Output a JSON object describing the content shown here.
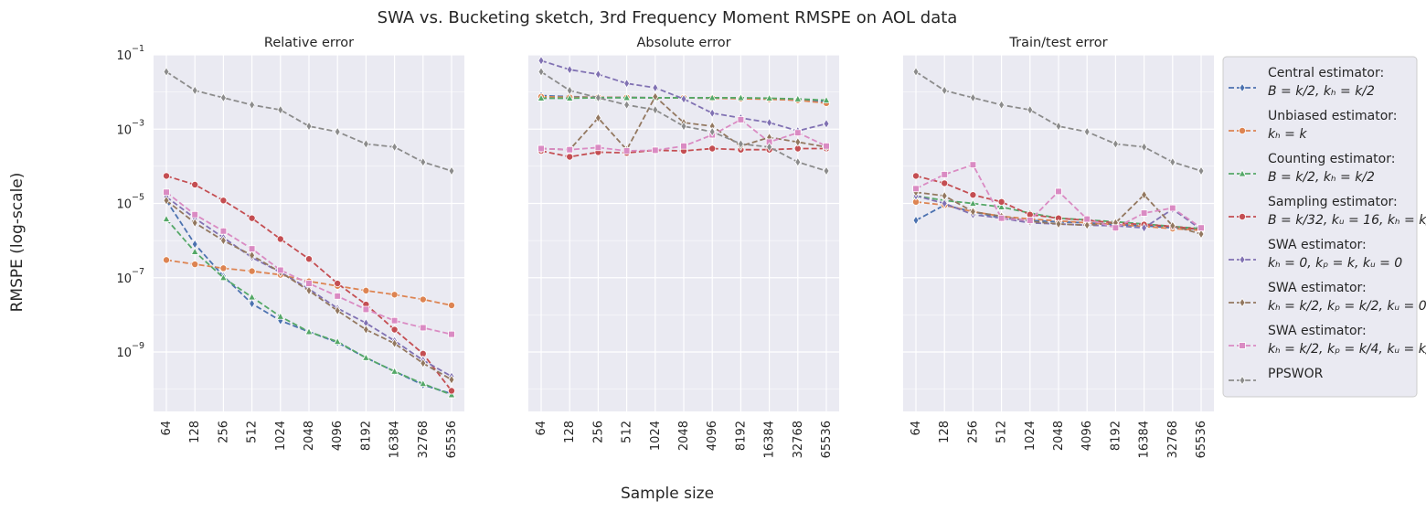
{
  "figure": {
    "title": "SWA vs. Bucketing sketch, 3rd Frequency Moment RMSPE on AOL data",
    "ylabel": "RMSPE (log-scale)",
    "xlabel": "Sample size"
  },
  "legend": {
    "placement": "right",
    "entries": [
      {
        "line1": "Central estimator:",
        "line2": "B = k/2, kₕ = k/2"
      },
      {
        "line1": "Unbiased estimator:",
        "line2": "kₕ = k"
      },
      {
        "line1": "Counting estimator:",
        "line2": "B = k/2, kₕ = k/2"
      },
      {
        "line1": "Sampling estimator:",
        "line2": "B = k/32, kᵤ = 16, kₕ = k/2"
      },
      {
        "line1": "SWA estimator:",
        "line2": "kₕ = 0, kₚ = k, kᵤ = 0"
      },
      {
        "line1": "SWA estimator:",
        "line2": "kₕ = k/2, kₚ = k/2, kᵤ = 0"
      },
      {
        "line1": "SWA estimator:",
        "line2": "kₕ = k/2, kₚ = k/4, kᵤ = k/4"
      },
      {
        "line1": "PPSWOR",
        "line2": ""
      }
    ]
  },
  "chart_data": [
    {
      "type": "line",
      "title": "Relative error",
      "y_scale": "log",
      "ylim_exp": [
        -10.6,
        -1.0
      ],
      "y_ticks": [
        "10",
        "10",
        "10",
        "10",
        "10"
      ],
      "y_tick_exps": [
        "−1",
        "−3",
        "−5",
        "−7",
        "−9"
      ],
      "categories": [
        "64",
        "128",
        "256",
        "512",
        "1024",
        "2048",
        "4096",
        "8192",
        "16384",
        "32768",
        "65536"
      ],
      "grid": true,
      "series": [
        {
          "name": "Central estimator",
          "color": "#4c72b0",
          "marker": "diamond",
          "values": [
            1.2e-05,
            8e-07,
            1.1e-07,
            2e-08,
            7e-09,
            3.5e-09,
            1.8e-09,
            7e-10,
            3e-10,
            1.3e-10,
            7.5e-11
          ]
        },
        {
          "name": "Unbiased estimator",
          "color": "#dd8452",
          "marker": "circle",
          "values": [
            3e-07,
            2.3e-07,
            1.8e-07,
            1.5e-07,
            1.2e-07,
            8e-08,
            6e-08,
            4.5e-08,
            3.5e-08,
            2.6e-08,
            1.8e-08
          ]
        },
        {
          "name": "Counting estimator",
          "color": "#55a868",
          "marker": "triangle",
          "values": [
            3.8e-06,
            5e-07,
            1e-07,
            3e-08,
            9e-09,
            3.5e-09,
            1.9e-09,
            7e-10,
            3e-10,
            1.4e-10,
            7e-11
          ]
        },
        {
          "name": "Sampling estimator",
          "color": "#c44e52",
          "marker": "circle",
          "values": [
            5.5e-05,
            3.2e-05,
            1.2e-05,
            4e-06,
            1.1e-06,
            3.2e-07,
            7e-08,
            1.9e-08,
            4e-09,
            9e-10,
            9e-11
          ]
        },
        {
          "name": "SWA estimator 1",
          "color": "#8172b3",
          "marker": "diamond",
          "values": [
            1.5e-05,
            4e-06,
            1.2e-06,
            3.5e-07,
            1.4e-07,
            5e-08,
            1.5e-08,
            6e-09,
            2e-09,
            6e-10,
            2.2e-10
          ]
        },
        {
          "name": "SWA estimator 2",
          "color": "#937860",
          "marker": "diamond",
          "values": [
            1.2e-05,
            3e-06,
            1e-06,
            4e-07,
            1.4e-07,
            4.5e-08,
            1.3e-08,
            4e-09,
            1.7e-09,
            5e-10,
            1.8e-10
          ]
        },
        {
          "name": "SWA estimator 3",
          "color": "#da8bc3",
          "marker": "square",
          "values": [
            2e-05,
            5e-06,
            1.8e-06,
            6e-07,
            1.6e-07,
            7e-08,
            3.2e-08,
            1.4e-08,
            7e-09,
            4.5e-09,
            3e-09
          ]
        },
        {
          "name": "PPSWOR",
          "color": "#8c8c8c",
          "marker": "diamond",
          "values": [
            0.035,
            0.011,
            0.007,
            0.0045,
            0.0033,
            0.0012,
            0.00085,
            0.0004,
            0.00033,
            0.00013,
            7.5e-05
          ]
        }
      ]
    },
    {
      "type": "line",
      "title": "Absolute error",
      "y_scale": "log",
      "ylim_exp": [
        -10.6,
        -1.0
      ],
      "categories": [
        "64",
        "128",
        "256",
        "512",
        "1024",
        "2048",
        "4096",
        "8192",
        "16384",
        "32768",
        "65536"
      ],
      "grid": true,
      "series": [
        {
          "name": "Central estimator",
          "color": "#4c72b0",
          "marker": "diamond",
          "values": [
            0.008,
            0.0075,
            0.0072,
            0.0072,
            0.007,
            0.007,
            0.0068,
            0.0068,
            0.0065,
            0.006,
            0.0055
          ]
        },
        {
          "name": "Unbiased estimator",
          "color": "#dd8452",
          "marker": "circle",
          "values": [
            0.0075,
            0.0072,
            0.0072,
            0.0071,
            0.007,
            0.007,
            0.0068,
            0.0066,
            0.0064,
            0.006,
            0.005
          ]
        },
        {
          "name": "Counting estimator",
          "color": "#55a868",
          "marker": "triangle",
          "values": [
            0.0068,
            0.0068,
            0.007,
            0.007,
            0.007,
            0.007,
            0.007,
            0.007,
            0.0068,
            0.0065,
            0.006
          ]
        },
        {
          "name": "Sampling estimator",
          "color": "#c44e52",
          "marker": "circle",
          "values": [
            0.00026,
            0.00018,
            0.00024,
            0.00023,
            0.00027,
            0.00026,
            0.0003,
            0.00028,
            0.00028,
            0.0003,
            0.0003
          ]
        },
        {
          "name": "SWA estimator 1",
          "color": "#8172b3",
          "marker": "diamond",
          "values": [
            0.07,
            0.04,
            0.03,
            0.017,
            0.013,
            0.0065,
            0.0027,
            0.002,
            0.0015,
            0.0009,
            0.0014
          ]
        },
        {
          "name": "SWA estimator 2",
          "color": "#937860",
          "marker": "diamond",
          "values": [
            0.0003,
            0.00028,
            0.002,
            0.00028,
            0.0075,
            0.0015,
            0.0012,
            0.00035,
            0.0006,
            0.00045,
            0.00033
          ]
        },
        {
          "name": "SWA estimator 3",
          "color": "#da8bc3",
          "marker": "square",
          "values": [
            0.0003,
            0.00028,
            0.00032,
            0.00026,
            0.00027,
            0.00035,
            0.0007,
            0.0018,
            0.00045,
            0.0008,
            0.00035
          ]
        },
        {
          "name": "PPSWOR",
          "color": "#8c8c8c",
          "marker": "diamond",
          "values": [
            0.035,
            0.011,
            0.007,
            0.0045,
            0.0033,
            0.0012,
            0.00085,
            0.0004,
            0.00033,
            0.00013,
            7.5e-05
          ]
        }
      ]
    },
    {
      "type": "line",
      "title": "Train/test error",
      "y_scale": "log",
      "ylim_exp": [
        -10.6,
        -1.0
      ],
      "categories": [
        "64",
        "128",
        "256",
        "512",
        "1024",
        "2048",
        "4096",
        "8192",
        "16384",
        "32768",
        "65536"
      ],
      "grid": true,
      "series": [
        {
          "name": "Central estimator",
          "color": "#4c72b0",
          "marker": "diamond",
          "values": [
            3.5e-06,
            9e-06,
            6e-06,
            4e-06,
            3.5e-06,
            3.2e-06,
            3e-06,
            2.7e-06,
            2.5e-06,
            2.2e-06,
            2e-06
          ]
        },
        {
          "name": "Unbiased estimator",
          "color": "#dd8452",
          "marker": "circle",
          "values": [
            1.1e-05,
            9e-06,
            6e-06,
            4.5e-06,
            3.8e-06,
            3.4e-06,
            3e-06,
            2.7e-06,
            2.4e-06,
            2.1e-06,
            1.9e-06
          ]
        },
        {
          "name": "Counting estimator",
          "color": "#55a868",
          "marker": "triangle",
          "values": [
            1.6e-05,
            1.2e-05,
            1e-05,
            8e-06,
            5.5e-06,
            4e-06,
            3.6e-06,
            3.2e-06,
            2.8e-06,
            2.4e-06,
            2.1e-06
          ]
        },
        {
          "name": "Sampling estimator",
          "color": "#c44e52",
          "marker": "circle",
          "values": [
            5.5e-05,
            3.5e-05,
            1.7e-05,
            1.1e-05,
            5e-06,
            4e-06,
            3.5e-06,
            3e-06,
            2.7e-06,
            2.4e-06,
            2e-06
          ]
        },
        {
          "name": "SWA estimator 1",
          "color": "#8172b3",
          "marker": "diamond",
          "values": [
            1.6e-05,
            1e-05,
            5e-06,
            4e-06,
            3e-06,
            2.8e-06,
            2.6e-06,
            2.5e-06,
            2.2e-06,
            7e-06,
            2e-06
          ]
        },
        {
          "name": "SWA estimator 2",
          "color": "#937860",
          "marker": "diamond",
          "values": [
            2e-05,
            1.6e-05,
            6e-06,
            4.5e-06,
            3.3e-06,
            2.8e-06,
            2.6e-06,
            3e-06,
            1.7e-05,
            2.5e-06,
            1.5e-06
          ]
        },
        {
          "name": "SWA estimator 3",
          "color": "#da8bc3",
          "marker": "square",
          "values": [
            2.5e-05,
            6e-05,
            0.00011,
            4e-06,
            3.5e-06,
            2.1e-05,
            3.8e-06,
            2.2e-06,
            5.5e-06,
            7.5e-06,
            2.2e-06
          ]
        },
        {
          "name": "PPSWOR",
          "color": "#8c8c8c",
          "marker": "diamond",
          "values": [
            0.035,
            0.011,
            0.007,
            0.0045,
            0.0033,
            0.0012,
            0.00085,
            0.0004,
            0.00033,
            0.00013,
            7.5e-05
          ]
        }
      ]
    }
  ]
}
